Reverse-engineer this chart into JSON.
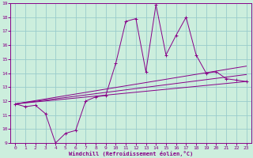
{
  "xlabel": "Windchill (Refroidissement éolien,°C)",
  "bg_color": "#cceedd",
  "line_color": "#880088",
  "grid_color": "#99cccc",
  "xlim": [
    -0.5,
    23.5
  ],
  "ylim": [
    9,
    19
  ],
  "xticks": [
    0,
    1,
    2,
    3,
    4,
    5,
    6,
    7,
    8,
    9,
    10,
    11,
    12,
    13,
    14,
    15,
    16,
    17,
    18,
    19,
    20,
    21,
    22,
    23
  ],
  "yticks": [
    9,
    10,
    11,
    12,
    13,
    14,
    15,
    16,
    17,
    18,
    19
  ],
  "main_x": [
    0,
    1,
    2,
    3,
    4,
    5,
    6,
    7,
    8,
    9,
    10,
    11,
    12,
    13,
    14,
    15,
    16,
    17,
    18,
    19,
    20,
    21,
    22,
    23
  ],
  "main_y": [
    11.8,
    11.6,
    11.7,
    11.1,
    9.0,
    9.7,
    9.9,
    12.0,
    12.3,
    12.4,
    14.7,
    17.7,
    17.9,
    14.1,
    18.9,
    15.3,
    16.7,
    18.0,
    15.3,
    14.0,
    14.1,
    13.6,
    13.5,
    13.4
  ],
  "line2_x": [
    0,
    23
  ],
  "line2_y": [
    11.8,
    13.4
  ],
  "line3_x": [
    0,
    23
  ],
  "line3_y": [
    11.8,
    13.9
  ],
  "line4_x": [
    0,
    23
  ],
  "line4_y": [
    11.8,
    14.5
  ]
}
